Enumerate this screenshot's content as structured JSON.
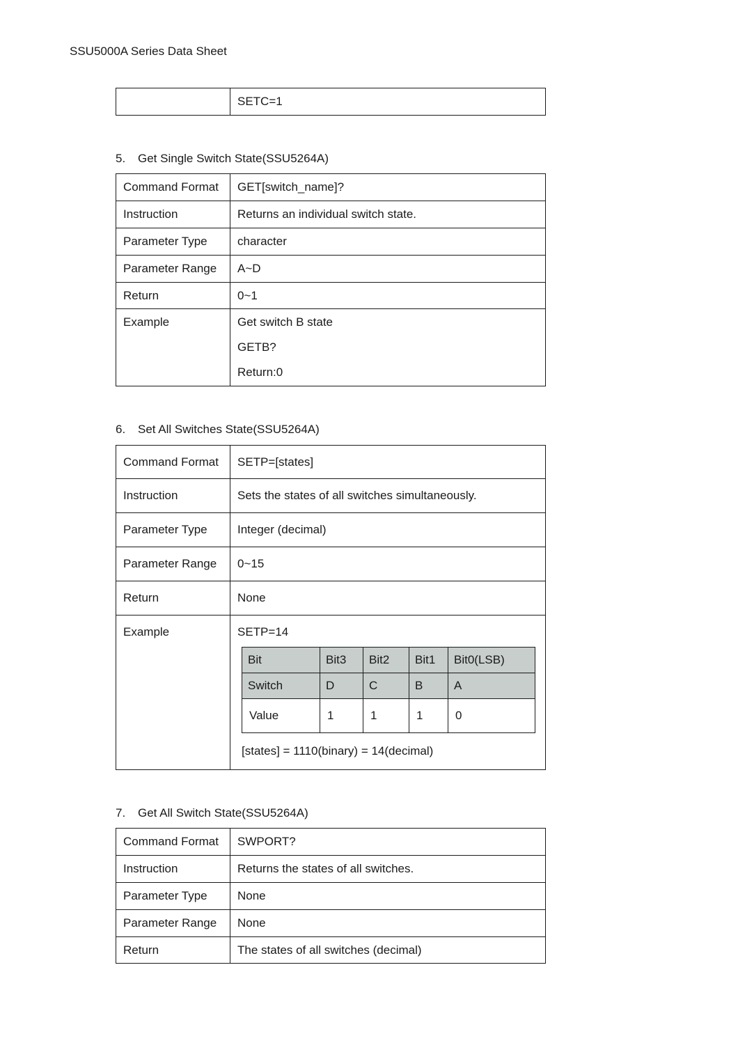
{
  "header": {
    "title": "SSU5000A Series Data Sheet"
  },
  "fragment": {
    "left": "",
    "right": "SETC=1"
  },
  "section5": {
    "num": "5.",
    "title": "Get Single Switch State(SSU5264A)",
    "rows": {
      "cmd_label": "Command Format",
      "cmd_value": "GET[switch_name]?",
      "instr_label": "Instruction",
      "instr_value": "Returns an individual switch state.",
      "ptype_label": "Parameter Type",
      "ptype_value": "character",
      "prange_label": "Parameter Range",
      "prange_value": "A~D",
      "return_label": "Return",
      "return_value": "0~1",
      "example_label": "Example",
      "example_line1": "Get switch B state",
      "example_line2": "GETB?",
      "example_line3": "Return:0"
    }
  },
  "section6": {
    "num": "6.",
    "title": "Set All Switches State(SSU5264A)",
    "rows": {
      "cmd_label": "Command Format",
      "cmd_value": "SETP=[states]",
      "instr_label": "Instruction",
      "instr_value": "Sets the states of all switches simultaneously.",
      "ptype_label": "Parameter Type",
      "ptype_value": "Integer (decimal)",
      "prange_label": "Parameter Range",
      "prange_value": "0~15",
      "return_label": "Return",
      "return_value": "None",
      "example_label": "Example",
      "example_top": "SETP=14",
      "bit_header": [
        "Bit",
        "Bit3",
        "Bit2",
        "Bit1",
        "Bit0(LSB)"
      ],
      "bit_row1": [
        "Switch",
        "D",
        "C",
        "B",
        "A"
      ],
      "bit_row2": [
        "Value",
        "1",
        "1",
        "1",
        "0"
      ],
      "states_note": "[states]    = 1110(binary) = 14(decimal)"
    }
  },
  "section7": {
    "num": "7.",
    "title": "Get All Switch State(SSU5264A)",
    "rows": {
      "cmd_label": "Command Format",
      "cmd_value": "SWPORT?",
      "instr_label": "Instruction",
      "instr_value": "Returns the states of all switches.",
      "ptype_label": "Parameter Type",
      "ptype_value": "None",
      "prange_label": "Parameter Range",
      "prange_value": "None",
      "return_label": "Return",
      "return_value": "The states of all switches (decimal)"
    }
  },
  "colors": {
    "text": "#1a1a1a",
    "bit_header_bg": "#c7cecc",
    "background": "#ffffff",
    "border": "#1a1a1a"
  }
}
